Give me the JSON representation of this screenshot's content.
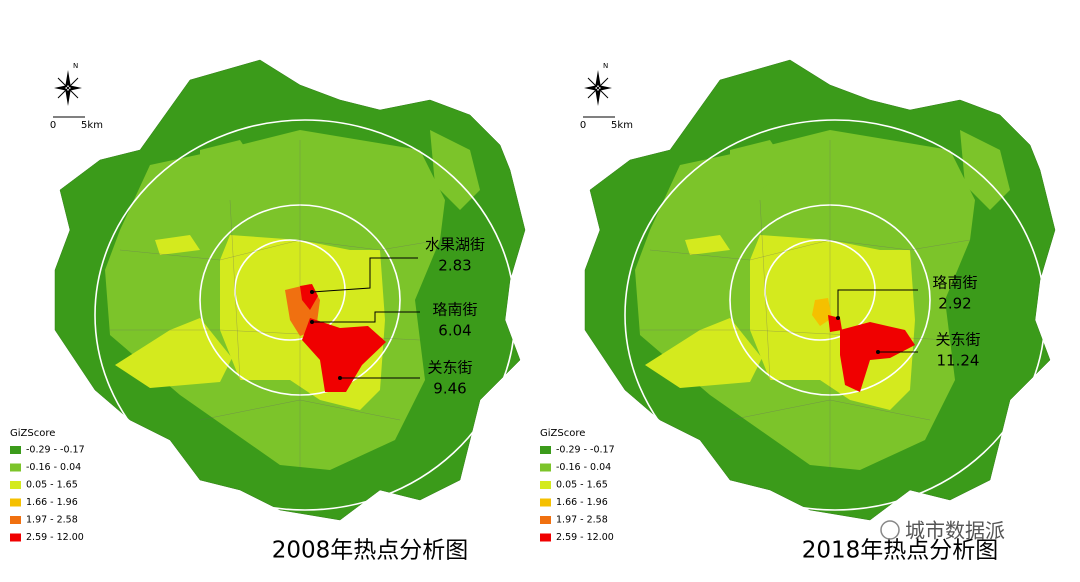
{
  "maps": [
    {
      "title": "2008年热点分析图",
      "north": "N",
      "scale": [
        "0",
        "5km"
      ],
      "legend": {
        "title": "GiZScore",
        "items": [
          {
            "label": "-0.29 - -0.17",
            "color": "#3b9b1a"
          },
          {
            "label": "-0.16 - 0.04",
            "color": "#7cc42a"
          },
          {
            "label": "0.05 - 1.65",
            "color": "#d4ea1e"
          },
          {
            "label": "1.66 - 1.96",
            "color": "#f5c000"
          },
          {
            "label": "1.97 - 2.58",
            "color": "#f07010"
          },
          {
            "label": "2.59 - 12.00",
            "color": "#f00000"
          }
        ]
      },
      "annotations": [
        {
          "name": "水果湖街",
          "value": 2.83
        },
        {
          "name": "珞南街",
          "value": 6.04
        },
        {
          "name": "关东街",
          "value": 9.46
        }
      ]
    },
    {
      "title": "2018年热点分析图",
      "north": "N",
      "scale": [
        "0",
        "5km"
      ],
      "legend": {
        "title": "GiZScore",
        "items": [
          {
            "label": "-0.29 - -0.17",
            "color": "#3b9b1a"
          },
          {
            "label": "-0.16 - 0.04",
            "color": "#7cc42a"
          },
          {
            "label": "0.05 - 1.65",
            "color": "#d4ea1e"
          },
          {
            "label": "1.66 - 1.96",
            "color": "#f5c000"
          },
          {
            "label": "1.97 - 2.58",
            "color": "#f07010"
          },
          {
            "label": "2.59 - 12.00",
            "color": "#f00000"
          }
        ]
      },
      "annotations": [
        {
          "name": "珞南街",
          "value": 2.92
        },
        {
          "name": "关东街",
          "value": 11.24
        }
      ]
    }
  ],
  "watermark": "城市数据派"
}
